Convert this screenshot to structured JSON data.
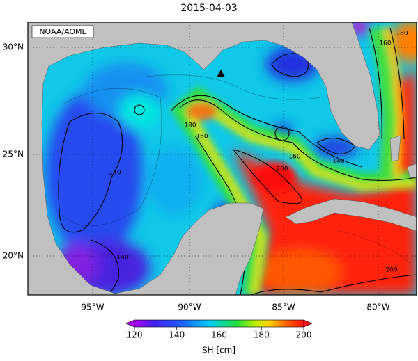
{
  "title": "2015-04-03",
  "credit": "NOAA/AOML",
  "map": {
    "lat_labels": [
      "30°N",
      "25°N",
      "20°N"
    ],
    "lon_labels": [
      "95°W",
      "90°W",
      "85°W",
      "80°W"
    ],
    "contour_labels": [
      180,
      160,
      180,
      160,
      140,
      200,
      160,
      140,
      140,
      200
    ]
  },
  "colorbar": {
    "label": "SH [cm]",
    "ticks": [
      120,
      140,
      160,
      180,
      200
    ]
  }
}
